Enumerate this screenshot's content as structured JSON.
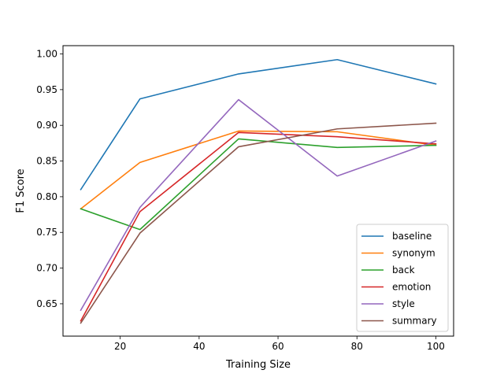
{
  "chart_data": {
    "type": "line",
    "title": "",
    "xlabel": "Training Size",
    "ylabel": "F1 Score",
    "x": [
      10,
      25,
      50,
      75,
      100
    ],
    "xlim": [
      5.5,
      104.5
    ],
    "ylim": [
      0.6047,
      1.0116
    ],
    "xticks": [
      20,
      40,
      60,
      80,
      100
    ],
    "yticks": [
      0.65,
      0.7,
      0.75,
      0.8,
      0.85,
      0.9,
      0.95,
      1.0
    ],
    "ytick_labels": [
      "0.65",
      "0.70",
      "0.75",
      "0.80",
      "0.85",
      "0.90",
      "0.95",
      "1.00"
    ],
    "grid": false,
    "legend_position": "lower-right",
    "series": [
      {
        "name": "baseline",
        "color": "#1f77b4",
        "values": [
          0.81,
          0.937,
          0.972,
          0.992,
          0.958
        ]
      },
      {
        "name": "synonym",
        "color": "#ff7f0e",
        "values": [
          0.783,
          0.848,
          0.892,
          0.891,
          0.872
        ]
      },
      {
        "name": "back",
        "color": "#2ca02c",
        "values": [
          0.783,
          0.754,
          0.881,
          0.869,
          0.872
        ]
      },
      {
        "name": "emotion",
        "color": "#d62728",
        "values": [
          0.626,
          0.779,
          0.89,
          0.884,
          0.874
        ]
      },
      {
        "name": "style",
        "color": "#9467bd",
        "values": [
          0.641,
          0.785,
          0.936,
          0.829,
          0.878
        ]
      },
      {
        "name": "summary",
        "color": "#8c564b",
        "values": [
          0.623,
          0.749,
          0.87,
          0.895,
          0.903
        ]
      }
    ]
  }
}
